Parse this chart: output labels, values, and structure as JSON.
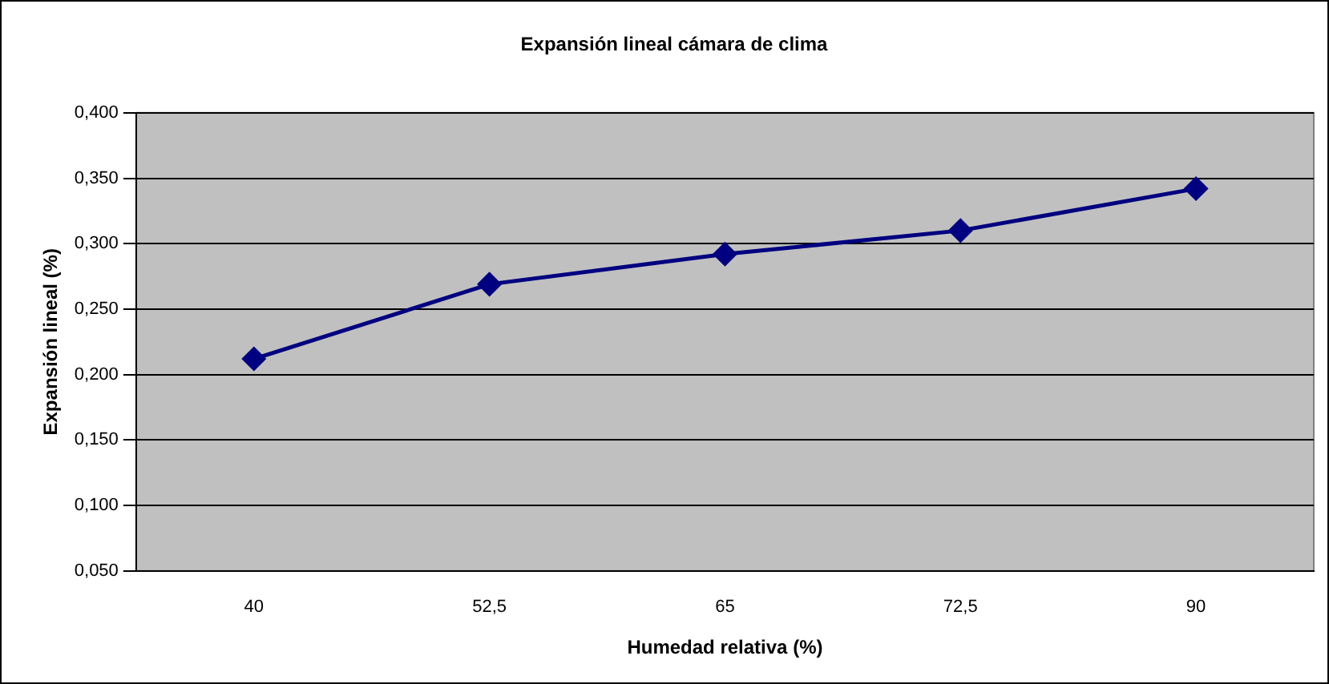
{
  "chart_data": {
    "type": "line",
    "title": "Expansión lineal cámara de clima",
    "xlabel": "Humedad relativa (%)",
    "ylabel": "Expansión lineal (%)",
    "categories": [
      "40",
      "52,5",
      "65",
      "72,5",
      "90"
    ],
    "series": [
      {
        "color": "#000080",
        "values": [
          0.212,
          0.269,
          0.292,
          0.31,
          0.342
        ]
      }
    ],
    "ylim": [
      0.05,
      0.4
    ],
    "yticks": [
      {
        "value": 0.05,
        "label": "0,050"
      },
      {
        "value": 0.1,
        "label": "0,100"
      },
      {
        "value": 0.15,
        "label": "0,150"
      },
      {
        "value": 0.2,
        "label": "0,200"
      },
      {
        "value": 0.25,
        "label": "0,250"
      },
      {
        "value": 0.3,
        "label": "0,300"
      },
      {
        "value": 0.35,
        "label": "0,350"
      },
      {
        "value": 0.4,
        "label": "0,400"
      }
    ],
    "grid": "y",
    "legend": false,
    "marker": "diamond",
    "line_style": "solid"
  }
}
